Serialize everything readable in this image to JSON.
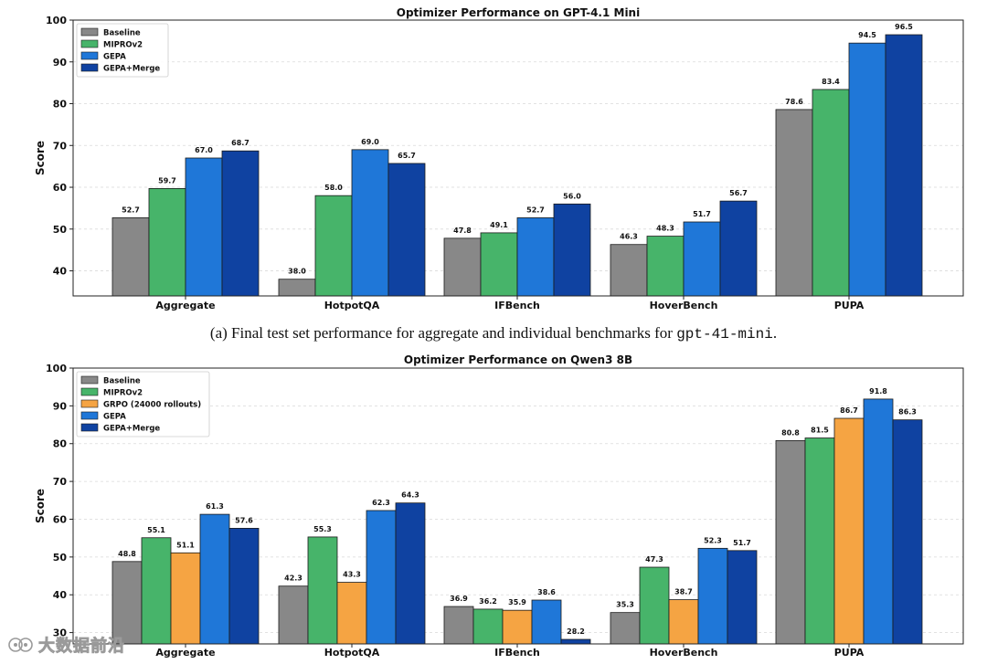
{
  "caption": {
    "prefix": "(a) Final test set performance for aggregate and individual benchmarks for",
    "code": "gpt-41-mini",
    "suffix": "."
  },
  "watermark": {
    "text": "大数据前沿"
  },
  "colors": {
    "Baseline": "#888888",
    "MIPROv2": "#47b46a",
    "GRPO (24000 rollouts)": "#f5a443",
    "GEPA": "#1f77d8",
    "GEPA+Merge": "#0f42a1"
  },
  "chart_data": [
    {
      "type": "bar",
      "title": "Optimizer Performance on GPT-4.1 Mini",
      "xlabel": "",
      "ylabel": "Score",
      "ylim": [
        34,
        100
      ],
      "yticks": [
        40,
        50,
        60,
        70,
        80,
        90,
        100
      ],
      "grid": true,
      "legend_position": "top-left",
      "categories": [
        "Aggregate",
        "HotpotQA",
        "IFBench",
        "HoverBench",
        "PUPA"
      ],
      "series": [
        {
          "name": "Baseline",
          "values": [
            52.7,
            38.0,
            47.8,
            46.3,
            78.6
          ]
        },
        {
          "name": "MIPROv2",
          "values": [
            59.7,
            58.0,
            49.1,
            48.3,
            83.4
          ]
        },
        {
          "name": "GEPA",
          "values": [
            67.0,
            69.0,
            52.7,
            51.7,
            94.5
          ]
        },
        {
          "name": "GEPA+Merge",
          "values": [
            68.7,
            65.7,
            56.0,
            56.7,
            96.5
          ]
        }
      ]
    },
    {
      "type": "bar",
      "title": "Optimizer Performance on Qwen3 8B",
      "xlabel": "",
      "ylabel": "Score",
      "ylim": [
        27,
        100
      ],
      "yticks": [
        30,
        40,
        50,
        60,
        70,
        80,
        90,
        100
      ],
      "grid": true,
      "legend_position": "top-left",
      "categories": [
        "Aggregate",
        "HotpotQA",
        "IFBench",
        "HoverBench",
        "PUPA"
      ],
      "series": [
        {
          "name": "Baseline",
          "values": [
            48.8,
            42.3,
            36.9,
            35.3,
            80.8
          ]
        },
        {
          "name": "MIPROv2",
          "values": [
            55.1,
            55.3,
            36.2,
            47.3,
            81.5
          ]
        },
        {
          "name": "GRPO (24000 rollouts)",
          "values": [
            51.1,
            43.3,
            35.9,
            38.7,
            86.7
          ]
        },
        {
          "name": "GEPA",
          "values": [
            61.3,
            62.3,
            38.6,
            52.3,
            91.8
          ]
        },
        {
          "name": "GEPA+Merge",
          "values": [
            57.6,
            64.3,
            28.2,
            51.7,
            86.3
          ]
        }
      ]
    }
  ]
}
